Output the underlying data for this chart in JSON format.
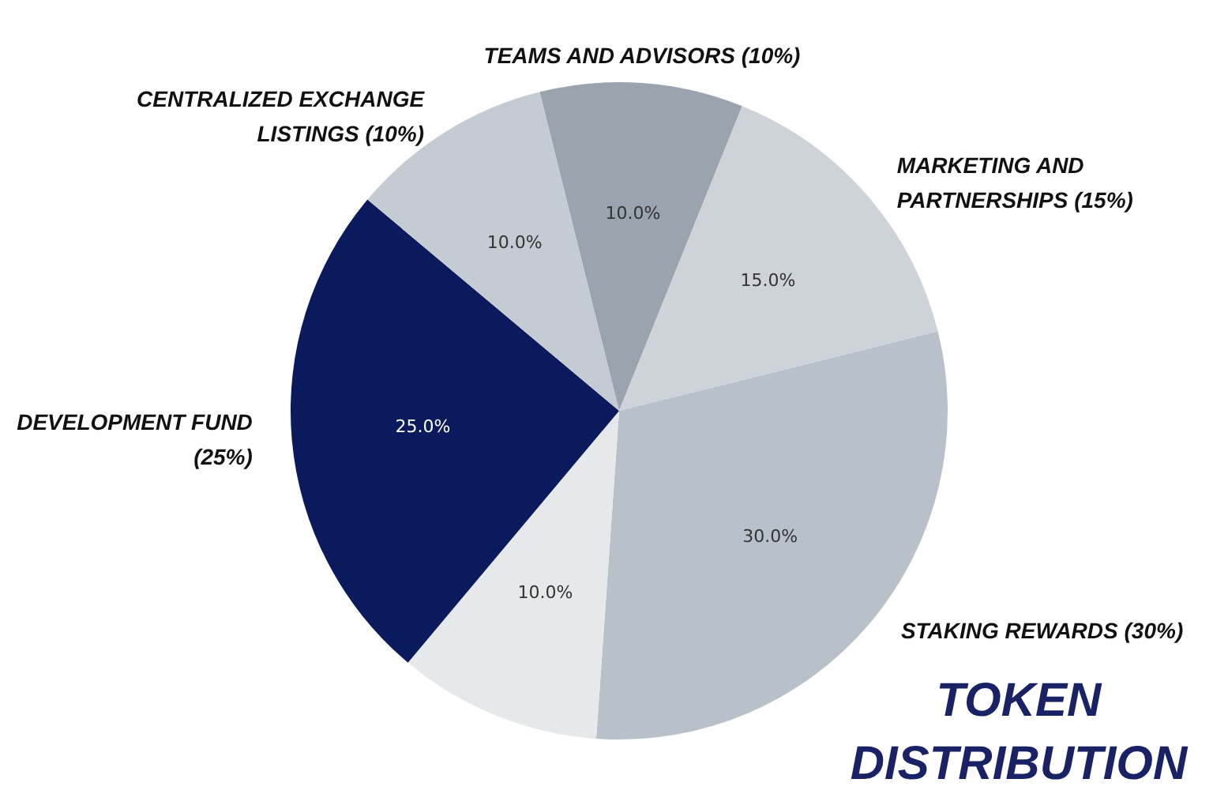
{
  "chart_data": {
    "type": "pie",
    "title": "TOKEN DISTRIBUTION",
    "categories": [
      "TEAMS AND ADVISORS (10%)",
      "MARKETING AND PARTNERSHIPS (15%)",
      "STAKING REWARDS (30%)",
      null,
      "DEVELOPMENT FUND (25%)",
      "CENTRALIZED EXCHANGE LISTINGS (10%)"
    ],
    "values": [
      10,
      15,
      30,
      10,
      25,
      10
    ],
    "colors": [
      "#9aa4ae",
      "#cdd3d9",
      "#b8c1ca",
      "#e6e8ea",
      "#0b1a5c",
      "#c4cbd3"
    ],
    "value_labels": [
      "10.0%",
      "15.0%",
      "30.0%",
      "10.0%",
      "25.0%",
      "10.0%"
    ],
    "legend": false
  }
}
